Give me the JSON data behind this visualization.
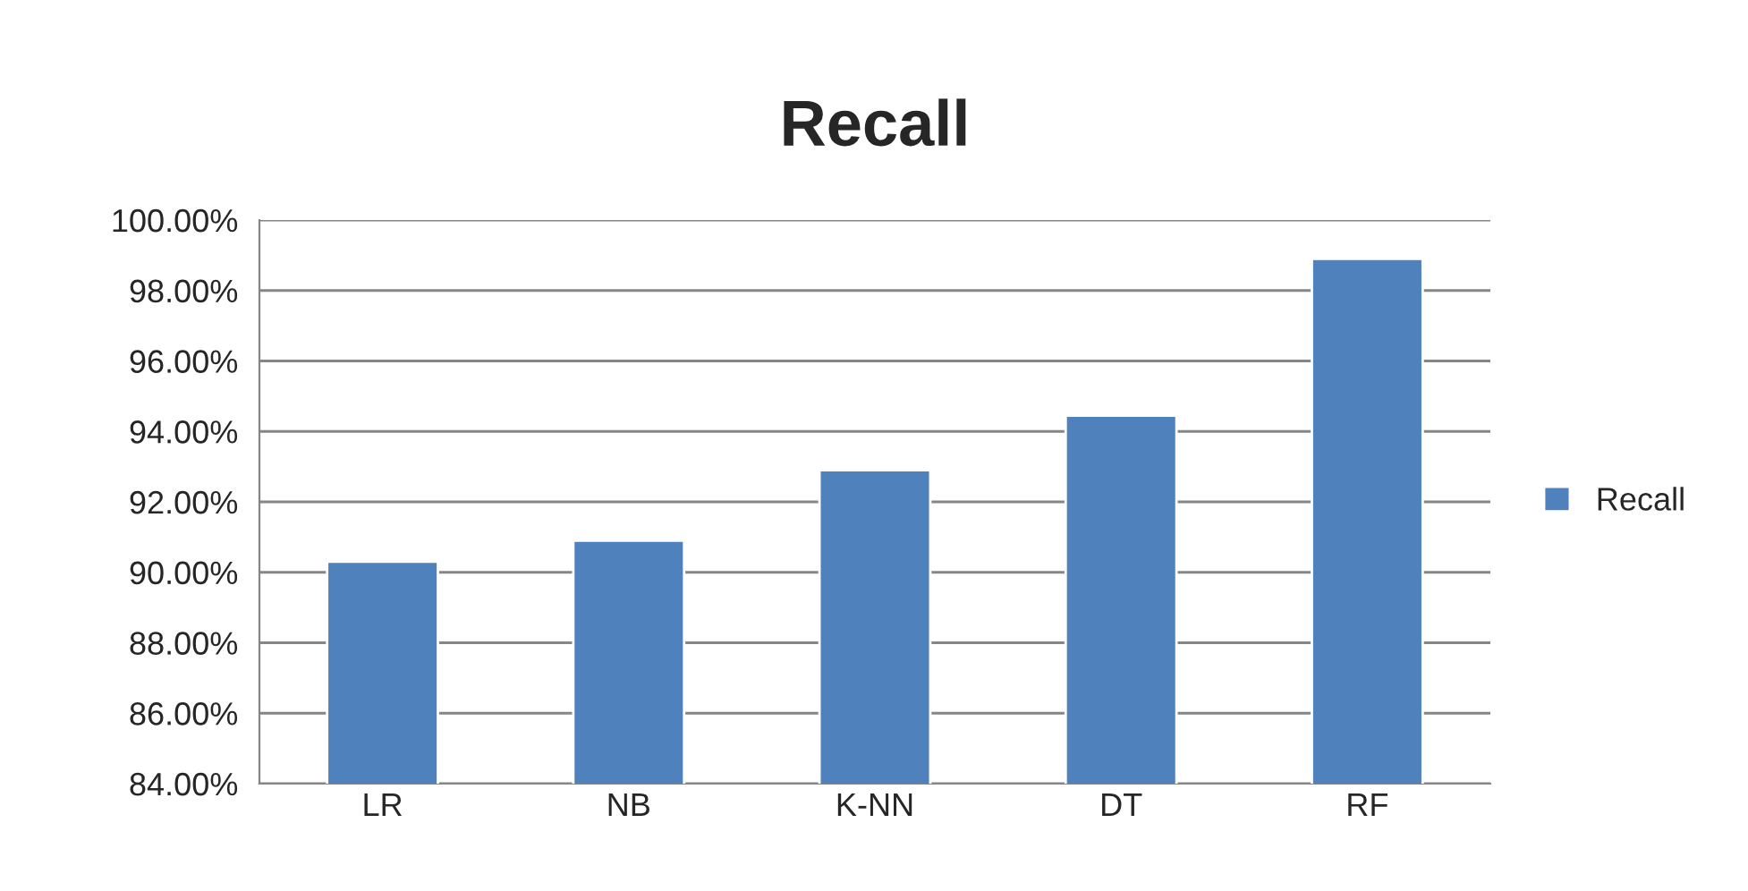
{
  "chart_data": {
    "type": "bar",
    "title": "Recall",
    "categories": [
      "LR",
      "NB",
      "K-NN",
      "DT",
      "RF"
    ],
    "series": [
      {
        "name": "Recall",
        "color": "#4f81bd",
        "values": [
          90.3,
          90.9,
          92.9,
          94.45,
          98.9
        ]
      }
    ],
    "ylim": [
      84,
      100
    ],
    "yticks": [
      {
        "value": 84,
        "label": "84.00%"
      },
      {
        "value": 86,
        "label": "86.00%"
      },
      {
        "value": 88,
        "label": "88.00%"
      },
      {
        "value": 90,
        "label": "90.00%"
      },
      {
        "value": 92,
        "label": "92.00%"
      },
      {
        "value": 94,
        "label": "94.00%"
      },
      {
        "value": 96,
        "label": "96.00%"
      },
      {
        "value": 98,
        "label": "98.00%"
      },
      {
        "value": 100,
        "label": "100.00%"
      }
    ],
    "grid": "y",
    "legend": "right"
  }
}
